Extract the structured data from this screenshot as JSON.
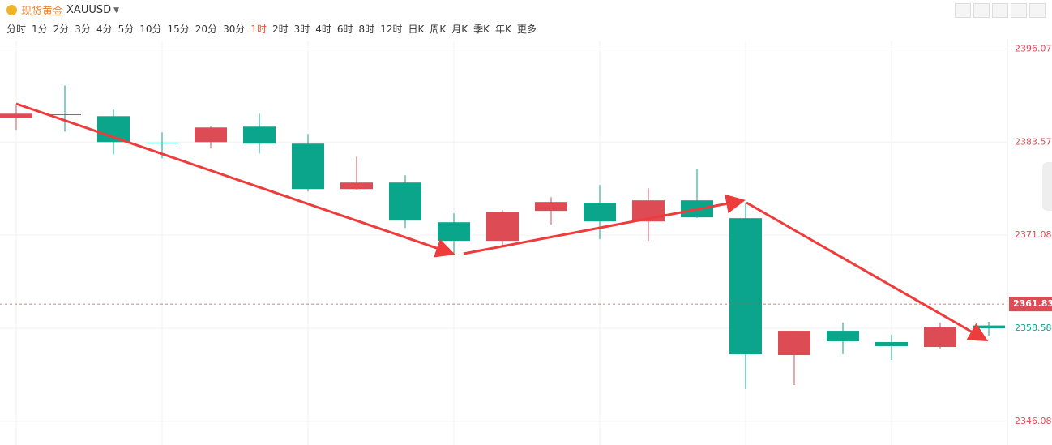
{
  "toolbar": {
    "title": "现货黄金",
    "symbol": "XAUUSD",
    "periods": [
      "分时",
      "1分",
      "2分",
      "3分",
      "4分",
      "5分",
      "10分",
      "15分",
      "20分",
      "30分",
      "1时",
      "2时",
      "3时",
      "4时",
      "6时",
      "8时",
      "12时",
      "日K",
      "周K",
      "月K",
      "季K",
      "年K",
      "更多"
    ],
    "active_period": "1时"
  },
  "chart_data": {
    "type": "candlestick",
    "open": [
      2386.83,
      2387.3,
      2387.05,
      2383.5,
      2383.57,
      2385.64,
      2383.36,
      2377.27,
      2378.14,
      2372.81,
      2370.32,
      2374.34,
      2375.42,
      2372.92,
      2375.75,
      2373.36,
      2354.99,
      2358.25,
      2356.73,
      2356.08,
      2358.95
    ],
    "high": [
      2388.68,
      2391.18,
      2387.92,
      2384.88,
      2385.75,
      2387.38,
      2384.66,
      2381.62,
      2379.12,
      2374.01,
      2374.44,
      2376.18,
      2377.81,
      2377.38,
      2379.99,
      2375.42,
      2358.25,
      2359.34,
      2357.71,
      2359.34,
      2359.45
    ],
    "low": [
      2385.2,
      2384.99,
      2381.94,
      2381.4,
      2382.7,
      2382.05,
      2376.94,
      2377.2,
      2372.05,
      2368.47,
      2369.66,
      2372.49,
      2370.53,
      2370.32,
      2373.4,
      2350.43,
      2350.97,
      2355.1,
      2354.34,
      2355.86,
      2357.6
    ],
    "close": [
      2387.38,
      2387.2,
      2383.57,
      2383.4,
      2385.53,
      2383.36,
      2377.27,
      2378.14,
      2373.03,
      2370.32,
      2374.23,
      2375.53,
      2372.92,
      2375.75,
      2373.47,
      2355.1,
      2358.25,
      2356.84,
      2356.19,
      2358.69,
      2358.58
    ],
    "up_color": "#dd4b55",
    "down_color": "#0aa58a",
    "ylim": [
      2345.2,
      2397.2
    ],
    "yticks": [
      2346.08,
      2358.58,
      2371.08,
      2383.57,
      2396.07
    ],
    "last_price": 2361.83,
    "grid": true
  }
}
